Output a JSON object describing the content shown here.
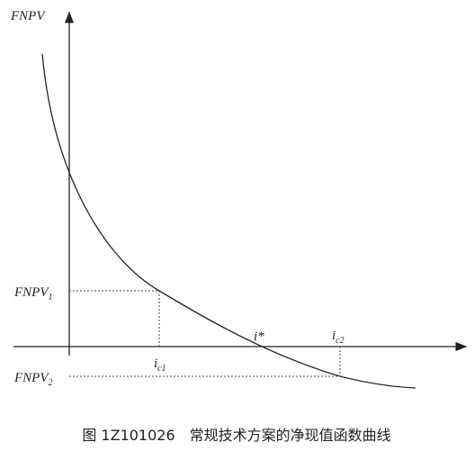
{
  "axis_label": "FNPV",
  "fnpv1": {
    "text": "FNPV",
    "sub": "1"
  },
  "fnpv2": {
    "text": "FNPV",
    "sub": "2"
  },
  "irr": "i*",
  "ic1": {
    "text": "i",
    "sub": "c1"
  },
  "ic2": {
    "text": "i",
    "sub": "c2"
  },
  "caption": "图 1Z101026　常规技术方案的净现值函数曲线"
}
